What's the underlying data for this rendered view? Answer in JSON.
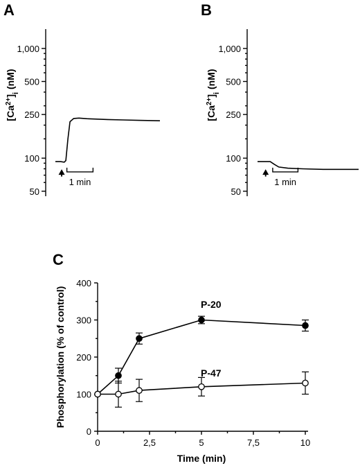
{
  "chart_data": [
    {
      "panel": "A",
      "type": "line",
      "ylabel_main": "[Ca",
      "ylabel_sup": "2+",
      "ylabel_mid": "]",
      "ylabel_sub": "i",
      "ylabel_end": " (nM)",
      "yscale": "log",
      "ylim": [
        45,
        1500
      ],
      "yticks": [
        50,
        100,
        250,
        500,
        1000
      ],
      "ytick_labels": [
        "50",
        "100",
        "250",
        "500",
        "1,000"
      ],
      "scale_bar_label": "1 min",
      "trace": [
        [
          0,
          93
        ],
        [
          0.1,
          93
        ],
        [
          0.17,
          92
        ],
        [
          0.2,
          95
        ],
        [
          0.24,
          150
        ],
        [
          0.28,
          215
        ],
        [
          0.35,
          230
        ],
        [
          0.45,
          232
        ],
        [
          0.6,
          229
        ],
        [
          0.8,
          227
        ],
        [
          1.0,
          225
        ],
        [
          1.3,
          223
        ],
        [
          1.6,
          221
        ],
        [
          2.0,
          219
        ]
      ],
      "arrow_x": 0.12,
      "scale_bar": [
        0.22,
        0.72
      ]
    },
    {
      "panel": "B",
      "type": "line",
      "ylabel_main": "[Ca",
      "ylabel_sup": "2+",
      "ylabel_mid": "]",
      "ylabel_sub": "i",
      "ylabel_end": " (nM)",
      "yscale": "log",
      "ylim": [
        45,
        1500
      ],
      "yticks": [
        50,
        100,
        250,
        500,
        1000
      ],
      "ytick_labels": [
        "50",
        "100",
        "250",
        "500",
        "1,000"
      ],
      "scale_bar_label": "1 min",
      "trace": [
        [
          0,
          93
        ],
        [
          0.25,
          93
        ],
        [
          0.33,
          88
        ],
        [
          0.42,
          83
        ],
        [
          0.6,
          81
        ],
        [
          0.9,
          80
        ],
        [
          1.3,
          79
        ],
        [
          1.7,
          79
        ],
        [
          2.0,
          79
        ]
      ],
      "arrow_x": 0.16,
      "scale_bar": [
        0.3,
        0.8
      ]
    },
    {
      "panel": "C",
      "type": "line",
      "xlabel": "Time (min)",
      "ylabel": "Phosphorylation (% of control)",
      "xlim": [
        0,
        10
      ],
      "ylim": [
        0,
        400
      ],
      "xticks": [
        0,
        2.5,
        5,
        7.5,
        10
      ],
      "xtick_labels": [
        "0",
        "2,5",
        "5",
        "7,5",
        "10"
      ],
      "yticks": [
        0,
        100,
        200,
        300,
        400
      ],
      "ytick_labels": [
        "0",
        "100",
        "200",
        "300",
        "400"
      ],
      "series": [
        {
          "name": "P-20",
          "marker": "filled",
          "x": [
            0,
            1,
            2,
            5,
            10
          ],
          "y": [
            100,
            150,
            250,
            300,
            285
          ],
          "err": [
            0,
            20,
            15,
            10,
            15
          ]
        },
        {
          "name": "P-47",
          "marker": "open",
          "x": [
            0,
            1,
            2,
            5,
            10
          ],
          "y": [
            100,
            100,
            110,
            120,
            130
          ],
          "err": [
            0,
            35,
            30,
            25,
            30
          ]
        }
      ]
    }
  ]
}
